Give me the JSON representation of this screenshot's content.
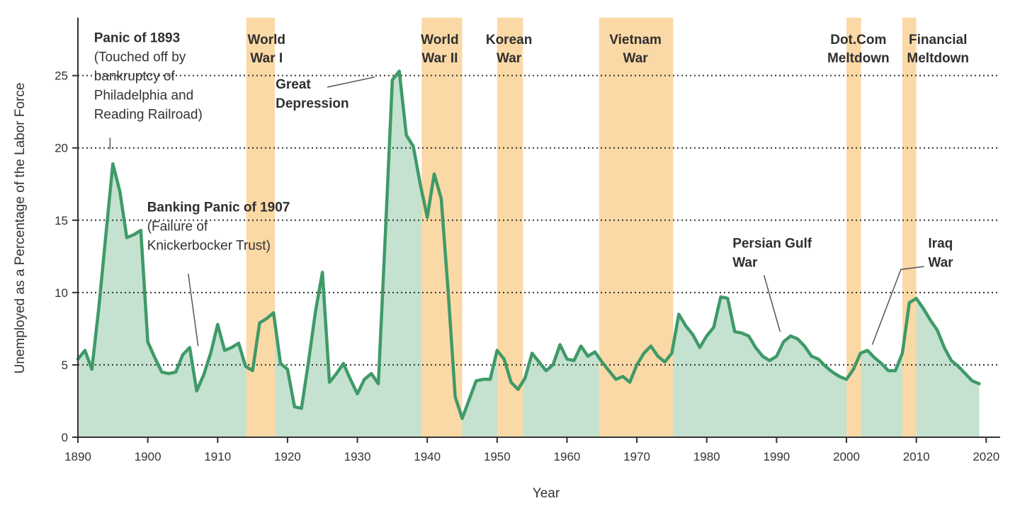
{
  "chart_data": {
    "type": "area",
    "title": "",
    "xlabel": "Year",
    "ylabel": "Unemployed as a Percentage of the Labor Force",
    "xlim": [
      1890,
      2022
    ],
    "ylim": [
      0,
      29
    ],
    "x_ticks": [
      1890,
      1900,
      1910,
      1920,
      1930,
      1940,
      1950,
      1960,
      1970,
      1980,
      1990,
      2000,
      2010,
      2020
    ],
    "y_ticks": [
      0,
      5,
      10,
      15,
      20,
      25
    ],
    "grid": "horizontal dotted at 5, 10, 15, 20, 25",
    "colors": {
      "line": "#3f9a68",
      "fill": "#c4e2cf",
      "shade": "#fbd9a6"
    },
    "series": [
      {
        "points": [
          [
            1890,
            5.4
          ],
          [
            1891,
            6.0
          ],
          [
            1892,
            4.7
          ],
          [
            1893,
            9.0
          ],
          [
            1894,
            14.0
          ],
          [
            1895,
            18.9
          ],
          [
            1896,
            17.0
          ],
          [
            1897,
            13.8
          ],
          [
            1898,
            14.0
          ],
          [
            1899,
            14.3
          ],
          [
            1900,
            6.6
          ],
          [
            1901,
            5.5
          ],
          [
            1902,
            4.5
          ],
          [
            1903,
            4.4
          ],
          [
            1904,
            4.5
          ],
          [
            1905,
            5.7
          ],
          [
            1906,
            6.2
          ],
          [
            1907,
            3.2
          ],
          [
            1908,
            4.3
          ],
          [
            1909,
            5.8
          ],
          [
            1910,
            7.8
          ],
          [
            1911,
            6.0
          ],
          [
            1912,
            6.2
          ],
          [
            1913,
            6.5
          ],
          [
            1914,
            4.9
          ],
          [
            1915,
            4.6
          ],
          [
            1916,
            7.9
          ],
          [
            1917,
            8.2
          ],
          [
            1918,
            8.6
          ],
          [
            1919,
            5.1
          ],
          [
            1920,
            4.7
          ],
          [
            1921,
            2.1
          ],
          [
            1922,
            2.0
          ],
          [
            1923,
            5.2
          ],
          [
            1924,
            8.7
          ],
          [
            1925,
            11.4
          ],
          [
            1926,
            3.8
          ],
          [
            1927,
            4.4
          ],
          [
            1928,
            5.1
          ],
          [
            1929,
            4.0
          ],
          [
            1930,
            3.0
          ],
          [
            1931,
            4.0
          ],
          [
            1932,
            4.4
          ],
          [
            1933,
            3.7
          ],
          [
            1934,
            14.0
          ],
          [
            1935,
            24.7
          ],
          [
            1936,
            25.3
          ],
          [
            1937,
            20.9
          ],
          [
            1938,
            20.1
          ],
          [
            1939,
            17.5
          ],
          [
            1940,
            15.2
          ],
          [
            1941,
            18.2
          ],
          [
            1942,
            16.5
          ],
          [
            1943,
            10.0
          ],
          [
            1944,
            2.8
          ],
          [
            1945,
            1.3
          ],
          [
            1946,
            2.6
          ],
          [
            1947,
            3.9
          ],
          [
            1948,
            4.0
          ],
          [
            1949,
            4.0
          ],
          [
            1950,
            6.0
          ],
          [
            1951,
            5.4
          ],
          [
            1952,
            3.8
          ],
          [
            1953,
            3.3
          ],
          [
            1954,
            4.1
          ],
          [
            1955,
            5.8
          ],
          [
            1956,
            5.2
          ],
          [
            1957,
            4.6
          ],
          [
            1958,
            5.0
          ],
          [
            1959,
            6.4
          ],
          [
            1960,
            5.4
          ],
          [
            1961,
            5.3
          ],
          [
            1962,
            6.3
          ],
          [
            1963,
            5.6
          ],
          [
            1964,
            5.9
          ],
          [
            1965,
            5.2
          ],
          [
            1966,
            4.6
          ],
          [
            1967,
            4.0
          ],
          [
            1968,
            4.2
          ],
          [
            1969,
            3.8
          ],
          [
            1970,
            5.0
          ],
          [
            1971,
            5.8
          ],
          [
            1972,
            6.3
          ],
          [
            1973,
            5.6
          ],
          [
            1974,
            5.2
          ],
          [
            1975,
            5.8
          ],
          [
            1976,
            8.5
          ],
          [
            1977,
            7.7
          ],
          [
            1978,
            7.1
          ],
          [
            1979,
            6.2
          ],
          [
            1980,
            7.0
          ],
          [
            1981,
            7.6
          ],
          [
            1982,
            9.7
          ],
          [
            1983,
            9.6
          ],
          [
            1984,
            7.3
          ],
          [
            1985,
            7.2
          ],
          [
            1986,
            7.0
          ],
          [
            1987,
            6.2
          ],
          [
            1988,
            5.6
          ],
          [
            1989,
            5.3
          ],
          [
            1990,
            5.6
          ],
          [
            1991,
            6.6
          ],
          [
            1992,
            7.0
          ],
          [
            1993,
            6.8
          ],
          [
            1994,
            6.3
          ],
          [
            1995,
            5.6
          ],
          [
            1996,
            5.4
          ],
          [
            1997,
            4.9
          ],
          [
            1998,
            4.5
          ],
          [
            1999,
            4.2
          ],
          [
            2000,
            4.0
          ],
          [
            2001,
            4.7
          ],
          [
            2002,
            5.8
          ],
          [
            2003,
            6.0
          ],
          [
            2004,
            5.5
          ],
          [
            2005,
            5.1
          ],
          [
            2006,
            4.6
          ],
          [
            2007,
            4.6
          ],
          [
            2008,
            5.8
          ],
          [
            2009,
            9.3
          ],
          [
            2010,
            9.6
          ],
          [
            2011,
            8.9
          ],
          [
            2012,
            8.1
          ],
          [
            2013,
            7.4
          ],
          [
            2014,
            6.2
          ],
          [
            2015,
            5.3
          ],
          [
            2016,
            4.9
          ],
          [
            2017,
            4.4
          ],
          [
            2018,
            3.9
          ],
          [
            2019,
            3.7
          ]
        ]
      }
    ],
    "shaded_periods": [
      {
        "label_lines": [
          "World",
          "War I"
        ],
        "start": 1914.1,
        "end": 1918.2,
        "label_x": 1917
      },
      {
        "label_lines": [
          "World",
          "War II"
        ],
        "start": 1939.2,
        "end": 1945.0,
        "label_x": 1941.8
      },
      {
        "label_lines": [
          "Korean",
          "War"
        ],
        "start": 1950.0,
        "end": 1953.7,
        "label_x": 1951.7
      },
      {
        "label_lines": [
          "Vietnam",
          "War"
        ],
        "start": 1964.6,
        "end": 1975.2,
        "label_x": 1969.8
      },
      {
        "label_lines": [
          "Dot.Com",
          "Meltdown"
        ],
        "start": 2000.0,
        "end": 2002.1,
        "label_x": 2001.7
      },
      {
        "label_lines": [
          "Financial",
          "Meltdown"
        ],
        "start": 2008.0,
        "end": 2010.0,
        "label_x": 2013.1
      }
    ],
    "annotations": [
      {
        "lines": [
          "Panic of 1893",
          "(Touched off by",
          "bankruptcy of",
          "Philadelphia and",
          "Reading Railroad)"
        ],
        "bold_lines": 1,
        "anchor": "start",
        "text_x": 1892.3,
        "text_y": 27.3,
        "leader": [
          [
            1894.6,
            19.9
          ],
          [
            1894.6,
            20.7
          ]
        ]
      },
      {
        "lines": [
          "Great",
          "Depression"
        ],
        "bold_lines": 2,
        "anchor": "start",
        "text_x": 1918.3,
        "text_y": 24.1,
        "leader": [
          [
            1925.7,
            24.2
          ],
          [
            1932.5,
            24.9
          ]
        ]
      },
      {
        "lines": [
          "Banking Panic of 1907",
          "(Failure of",
          "Knickerbocker Trust)"
        ],
        "bold_lines": 1,
        "anchor": "start",
        "text_x": 1899.9,
        "text_y": 15.6,
        "leader": [
          [
            1905.8,
            11.3
          ],
          [
            1907.2,
            6.3
          ]
        ]
      },
      {
        "lines": [
          "Persian Gulf",
          "War"
        ],
        "bold_lines": 2,
        "anchor": "start",
        "text_x": 1983.7,
        "text_y": 13.1,
        "leader": [
          [
            1988.2,
            11.2
          ],
          [
            1990.5,
            7.3
          ]
        ]
      },
      {
        "lines": [
          "Iraq",
          "War"
        ],
        "bold_lines": 2,
        "anchor": "start",
        "text_x": 2011.7,
        "text_y": 13.1,
        "leader": [
          [
            2011.1,
            11.8
          ],
          [
            2007.8,
            11.6
          ],
          [
            2003.7,
            6.4
          ]
        ]
      }
    ]
  }
}
